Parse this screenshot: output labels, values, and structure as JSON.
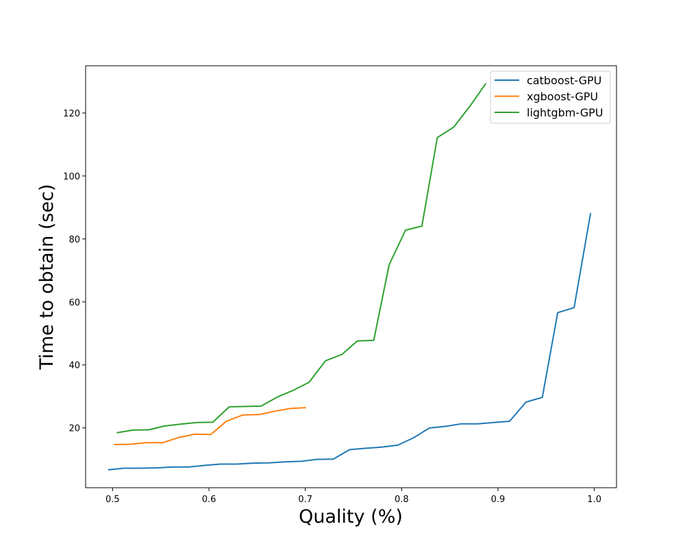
{
  "chart_data": {
    "type": "line",
    "title": "",
    "xlabel": "Quality (%)",
    "ylabel": "Time to obtain (sec)",
    "xlim": [
      0.472,
      1.023
    ],
    "ylim": [
      1.0,
      135.0
    ],
    "xticks": [
      0.5,
      0.6,
      0.7,
      0.8,
      0.9,
      1.0
    ],
    "xtick_labels": [
      "0.5",
      "0.6",
      "0.7",
      "0.8",
      "0.9",
      "1.0"
    ],
    "yticks": [
      20,
      40,
      60,
      80,
      100,
      120
    ],
    "ytick_labels": [
      "20",
      "40",
      "60",
      "80",
      "100",
      "120"
    ],
    "grid": false,
    "legend_position": "top-right",
    "series": [
      {
        "name": "catboost-GPU",
        "color": "#1f77b4",
        "x": [
          0.496,
          0.512,
          0.529,
          0.546,
          0.562,
          0.579,
          0.596,
          0.612,
          0.629,
          0.646,
          0.662,
          0.679,
          0.696,
          0.712,
          0.729,
          0.746,
          0.762,
          0.779,
          0.796,
          0.812,
          0.829,
          0.846,
          0.862,
          0.879,
          0.896,
          0.912,
          0.929,
          0.946,
          0.962,
          0.979,
          0.996
        ],
        "y": [
          6.7,
          7.2,
          7.2,
          7.3,
          7.6,
          7.6,
          8.1,
          8.5,
          8.5,
          8.8,
          8.9,
          9.2,
          9.4,
          10.0,
          10.1,
          13.1,
          13.5,
          13.9,
          14.5,
          16.8,
          20.0,
          20.5,
          21.3,
          21.3,
          21.7,
          22.1,
          28.2,
          29.7,
          56.6,
          58.2,
          88.0
        ]
      },
      {
        "name": "xgboost-GPU",
        "color": "#ff7f0e",
        "x": [
          0.502,
          0.518,
          0.535,
          0.552,
          0.568,
          0.585,
          0.602,
          0.618,
          0.635,
          0.652,
          0.668,
          0.685,
          0.7
        ],
        "y": [
          14.7,
          14.8,
          15.3,
          15.3,
          16.9,
          18.0,
          17.9,
          22.1,
          24.1,
          24.2,
          25.3,
          26.2,
          26.4
        ]
      },
      {
        "name": "lightgbm-GPU",
        "color": "#2ca02c",
        "x": [
          0.505,
          0.521,
          0.538,
          0.554,
          0.571,
          0.588,
          0.604,
          0.621,
          0.638,
          0.654,
          0.671,
          0.688,
          0.704,
          0.721,
          0.738,
          0.754,
          0.771,
          0.787,
          0.804,
          0.821,
          0.837,
          0.854,
          0.871,
          0.887
        ],
        "y": [
          18.5,
          19.3,
          19.4,
          20.6,
          21.2,
          21.7,
          21.8,
          26.7,
          26.8,
          26.9,
          29.8,
          32.0,
          34.5,
          41.3,
          43.3,
          47.6,
          47.8,
          71.8,
          82.8,
          84.1,
          112.2,
          115.5,
          122.2,
          129.2
        ]
      }
    ]
  }
}
